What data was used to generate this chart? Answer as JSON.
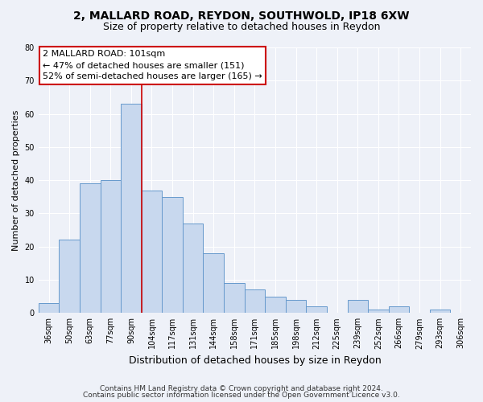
{
  "title1": "2, MALLARD ROAD, REYDON, SOUTHWOLD, IP18 6XW",
  "title2": "Size of property relative to detached houses in Reydon",
  "xlabel": "Distribution of detached houses by size in Reydon",
  "ylabel": "Number of detached properties",
  "categories": [
    "36sqm",
    "50sqm",
    "63sqm",
    "77sqm",
    "90sqm",
    "104sqm",
    "117sqm",
    "131sqm",
    "144sqm",
    "158sqm",
    "171sqm",
    "185sqm",
    "198sqm",
    "212sqm",
    "225sqm",
    "239sqm",
    "252sqm",
    "266sqm",
    "279sqm",
    "293sqm",
    "306sqm"
  ],
  "values": [
    3,
    22,
    39,
    40,
    63,
    37,
    35,
    27,
    18,
    9,
    7,
    5,
    4,
    2,
    0,
    4,
    1,
    2,
    0,
    1,
    0
  ],
  "bar_color": "#c8d8ee",
  "bar_edge_color": "#6699cc",
  "ylim": [
    0,
    80
  ],
  "yticks": [
    0,
    10,
    20,
    30,
    40,
    50,
    60,
    70,
    80
  ],
  "property_line_x": 4.5,
  "property_line_color": "#cc0000",
  "annotation_title": "2 MALLARD ROAD: 101sqm",
  "annotation_line1": "← 47% of detached houses are smaller (151)",
  "annotation_line2": "52% of semi-detached houses are larger (165) →",
  "annotation_box_facecolor": "#ffffff",
  "annotation_box_edgecolor": "#cc0000",
  "footer1": "Contains HM Land Registry data © Crown copyright and database right 2024.",
  "footer2": "Contains public sector information licensed under the Open Government Licence v3.0.",
  "background_color": "#eef1f8",
  "plot_bg_color": "#eef1f8",
  "title1_fontsize": 10,
  "title2_fontsize": 9,
  "xlabel_fontsize": 9,
  "ylabel_fontsize": 8,
  "tick_fontsize": 7,
  "annotation_fontsize": 8,
  "footer_fontsize": 6.5
}
